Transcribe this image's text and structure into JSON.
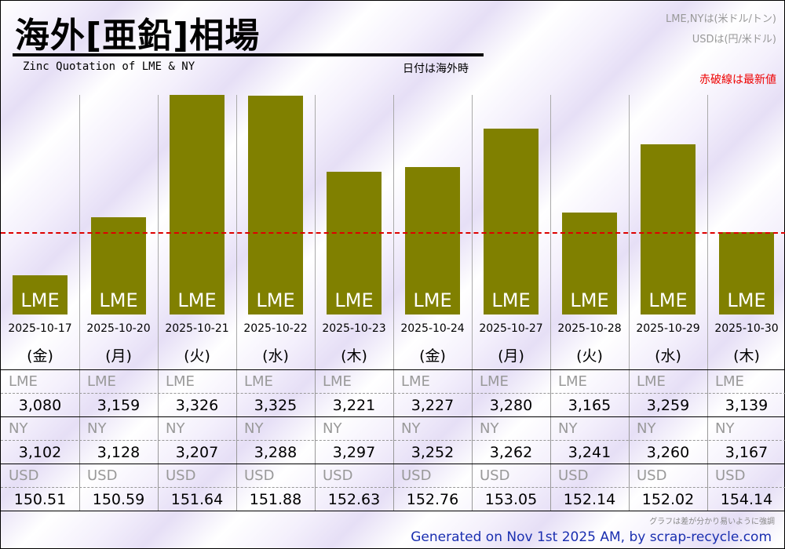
{
  "header": {
    "title": "海外[亜鉛]相場",
    "subtitle": "Zinc Quotation of LME & NY",
    "date_note": "日付は海外時",
    "unit_lme_ny": "LME,NYは(米ドル/トン)",
    "unit_usd": "USDは(円/米ドル)",
    "latest_note": "赤破線は最新値"
  },
  "chart_data": {
    "type": "bar",
    "title": "海外[亜鉛]相場",
    "categories": [
      "2025-10-17",
      "2025-10-20",
      "2025-10-21",
      "2025-10-22",
      "2025-10-23",
      "2025-10-24",
      "2025-10-27",
      "2025-10-28",
      "2025-10-29",
      "2025-10-30"
    ],
    "weekdays": [
      "(金)",
      "(月)",
      "(火)",
      "(水)",
      "(木)",
      "(金)",
      "(月)",
      "(火)",
      "(水)",
      "(木)"
    ],
    "bar_label": "LME",
    "series": [
      {
        "name": "LME",
        "values": [
          3080,
          3159,
          3326,
          3325,
          3221,
          3227,
          3280,
          3165,
          3259,
          3139
        ]
      },
      {
        "name": "NY",
        "values": [
          3102,
          3128,
          3207,
          3288,
          3297,
          3252,
          3262,
          3241,
          3260,
          3167
        ]
      },
      {
        "name": "USD",
        "values": [
          150.51,
          150.59,
          151.64,
          151.88,
          152.63,
          152.76,
          153.05,
          152.14,
          152.02,
          154.14
        ]
      }
    ],
    "display": {
      "LME": [
        "3,080",
        "3,159",
        "3,326",
        "3,325",
        "3,221",
        "3,227",
        "3,280",
        "3,165",
        "3,259",
        "3,139"
      ],
      "NY": [
        "3,102",
        "3,128",
        "3,207",
        "3,288",
        "3,297",
        "3,252",
        "3,262",
        "3,241",
        "3,260",
        "3,167"
      ],
      "USD": [
        "150.51",
        "150.59",
        "151.64",
        "151.88",
        "152.63",
        "152.76",
        "153.05",
        "152.14",
        "152.02",
        "154.14"
      ]
    },
    "ylim": [
      3026,
      3326
    ],
    "reference_line": {
      "value": 3139,
      "color": "#dd0000"
    },
    "bar_color": "#808000"
  },
  "footer": {
    "note": "グラフは差が分かり易いように強調",
    "generated": "Generated on Nov 1st 2025 AM, by scrap-recycle.com"
  }
}
